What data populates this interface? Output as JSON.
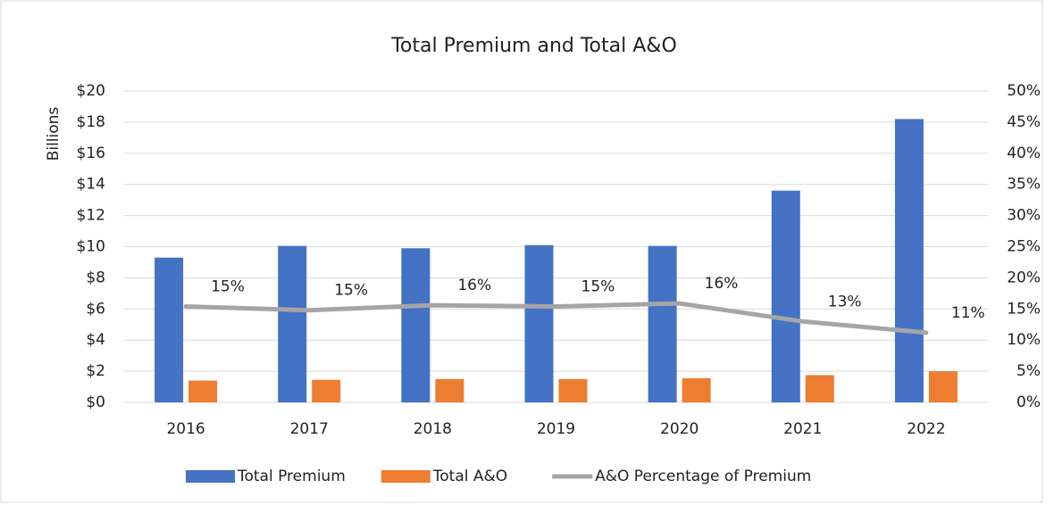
{
  "chart_data": {
    "type": "bar",
    "title": "Total Premium and Total A&O",
    "ylabel": "Billions",
    "categories": [
      "2016",
      "2017",
      "2018",
      "2019",
      "2020",
      "2021",
      "2022"
    ],
    "series": [
      {
        "name": "Total Premium",
        "color": "#4472c4",
        "type": "bar",
        "values": [
          9.3,
          10.05,
          9.9,
          10.1,
          10.05,
          13.6,
          18.2
        ]
      },
      {
        "name": "Total A&O",
        "color": "#ed7d31",
        "type": "bar",
        "values": [
          1.4,
          1.45,
          1.5,
          1.5,
          1.55,
          1.75,
          2.0
        ]
      },
      {
        "name": "A&O Percentage of Premium",
        "color": "#a5a5a5",
        "type": "line",
        "axis": "y2",
        "values": [
          15.4,
          14.8,
          15.6,
          15.4,
          15.9,
          13.0,
          11.2
        ],
        "value_labels": [
          "15%",
          "15%",
          "16%",
          "15%",
          "16%",
          "13%",
          "11%"
        ]
      }
    ],
    "ylim": [
      0,
      20
    ],
    "yticks": [
      {
        "value": 0,
        "label": "$0"
      },
      {
        "value": 2,
        "label": "$2"
      },
      {
        "value": 4,
        "label": "$4"
      },
      {
        "value": 6,
        "label": "$6"
      },
      {
        "value": 8,
        "label": "$8"
      },
      {
        "value": 10,
        "label": "$10"
      },
      {
        "value": 12,
        "label": "$12"
      },
      {
        "value": 14,
        "label": "$14"
      },
      {
        "value": 16,
        "label": "$16"
      },
      {
        "value": 18,
        "label": "$18"
      },
      {
        "value": 20,
        "label": "$20"
      }
    ],
    "y2lim": [
      0,
      50
    ],
    "y2ticks": [
      {
        "value": 0,
        "label": "0%"
      },
      {
        "value": 5,
        "label": "5%"
      },
      {
        "value": 10,
        "label": "10%"
      },
      {
        "value": 15,
        "label": "15%"
      },
      {
        "value": 20,
        "label": "20%"
      },
      {
        "value": 25,
        "label": "25%"
      },
      {
        "value": 30,
        "label": "30%"
      },
      {
        "value": 35,
        "label": "35%"
      },
      {
        "value": 40,
        "label": "40%"
      },
      {
        "value": 45,
        "label": "45%"
      },
      {
        "value": 50,
        "label": "50%"
      }
    ],
    "grid": true,
    "legend": "bottom"
  }
}
